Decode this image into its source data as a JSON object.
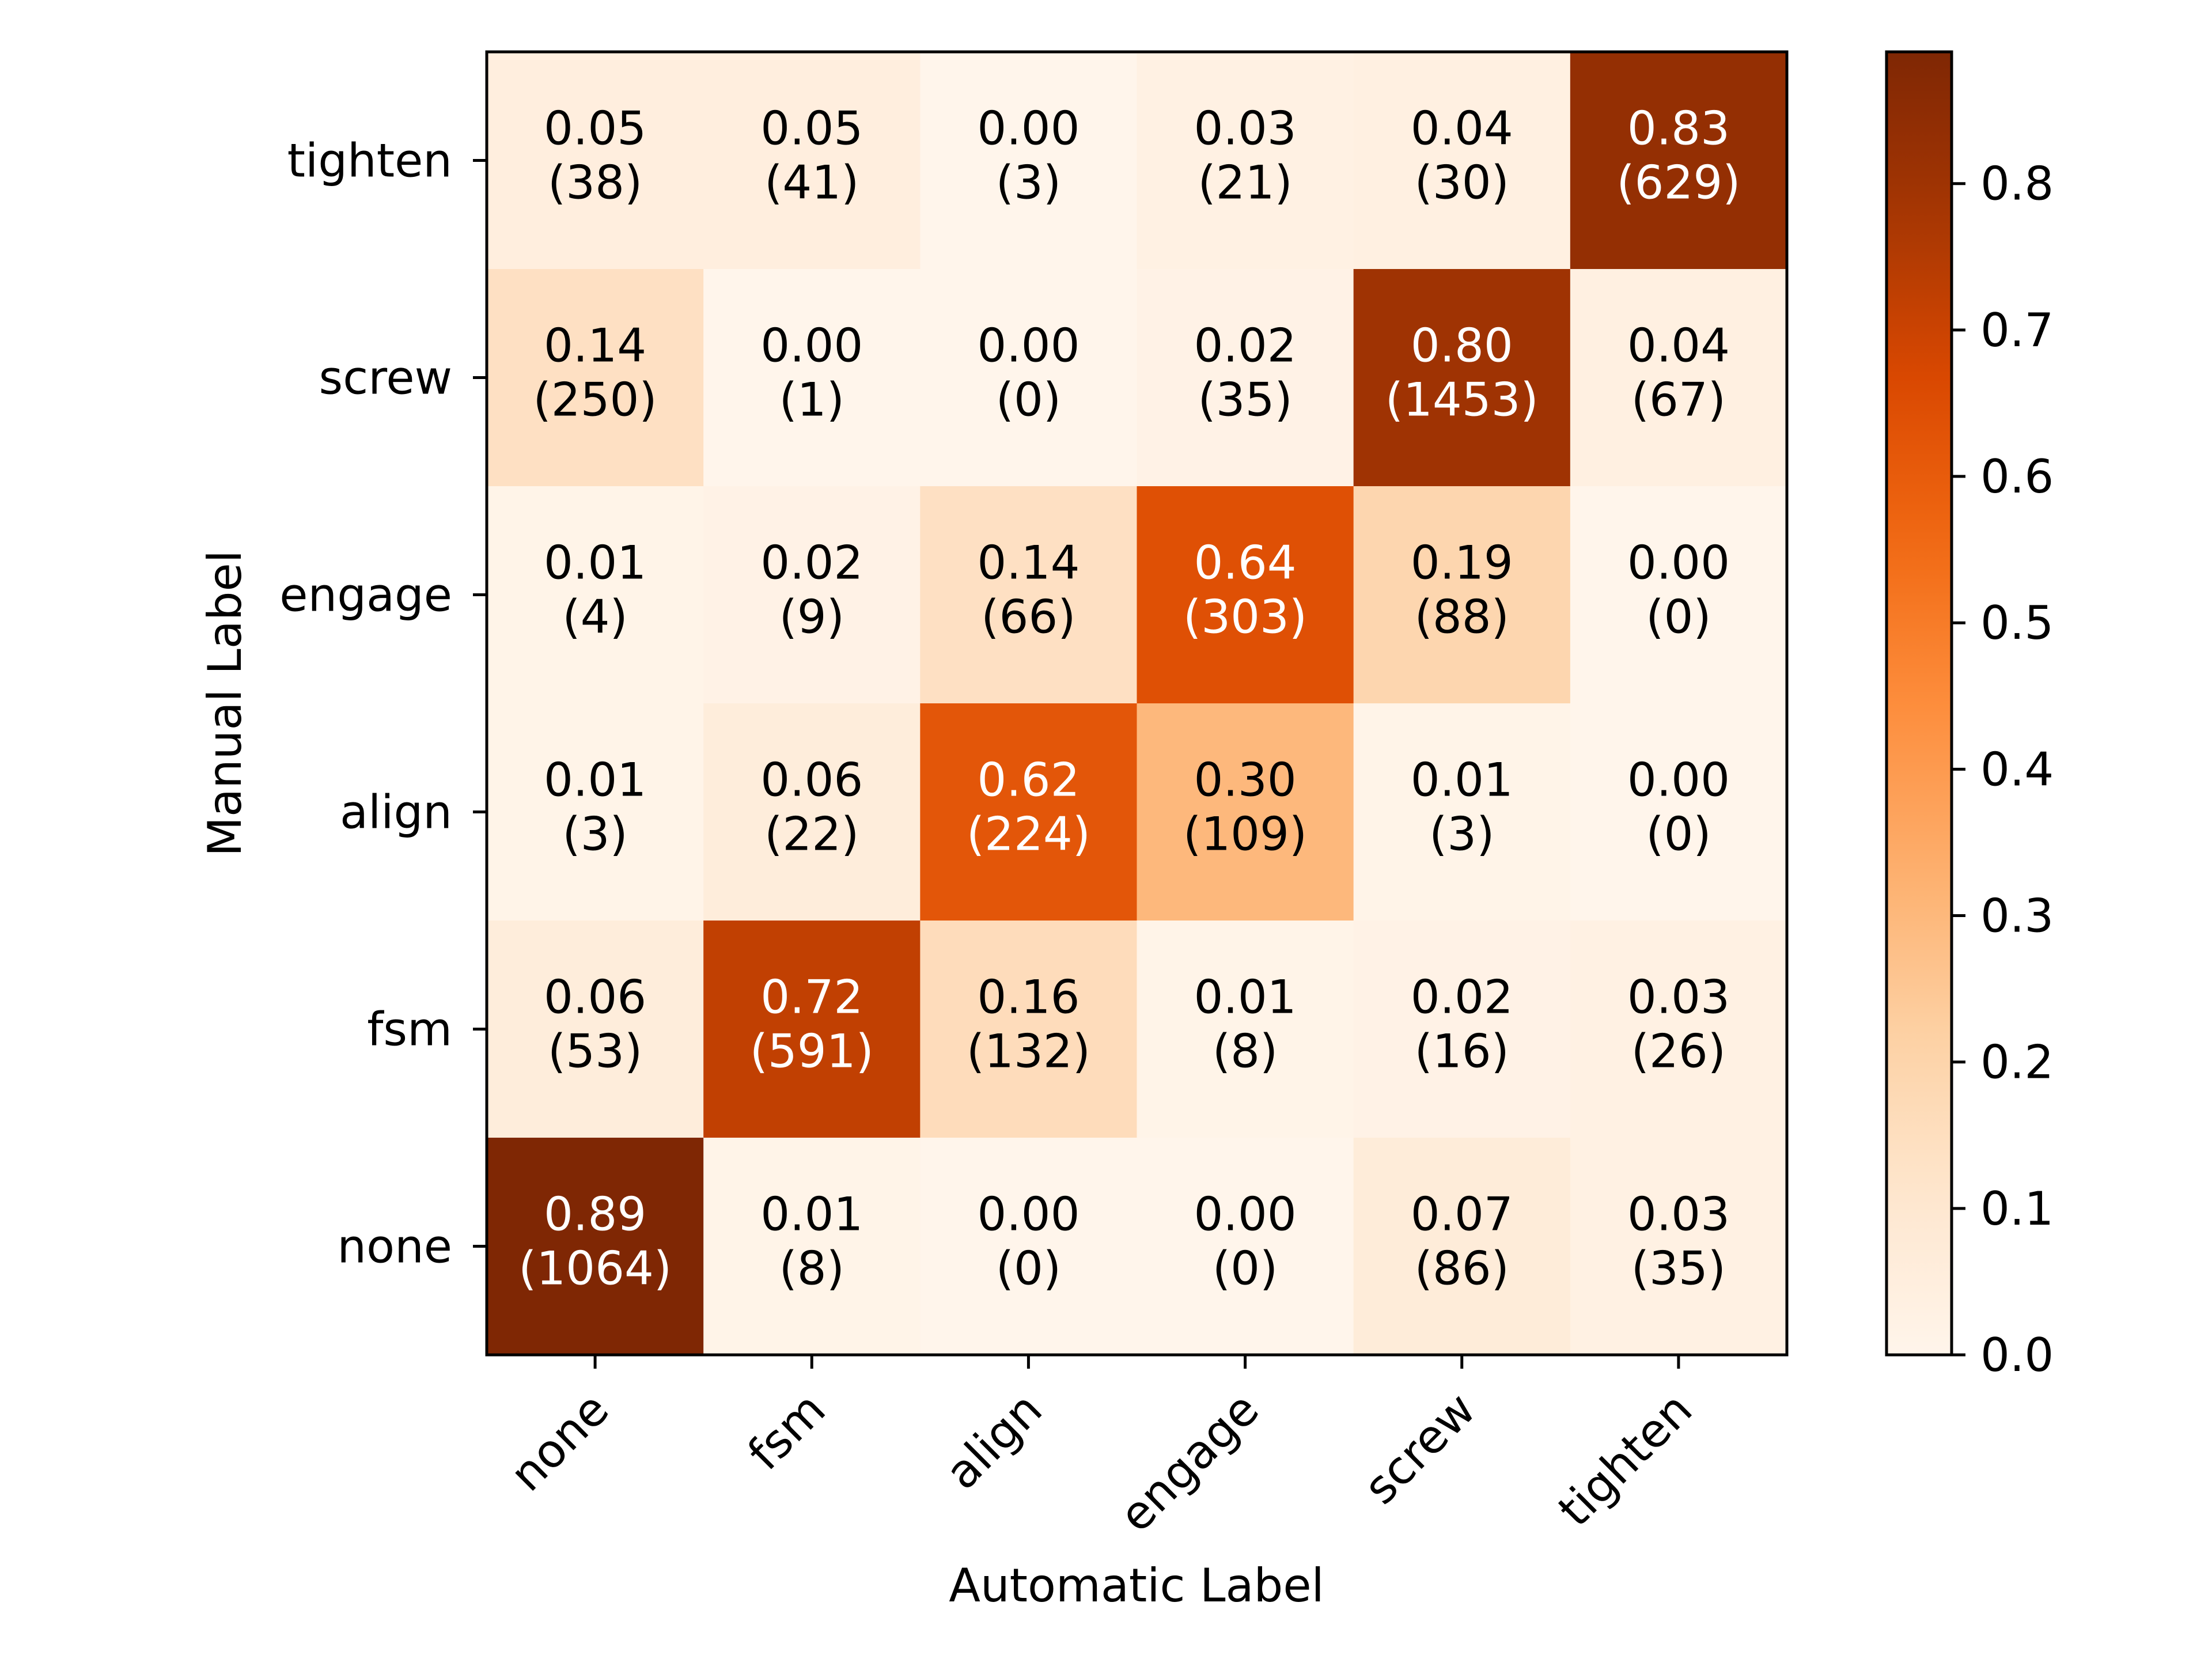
{
  "chart_data": {
    "type": "heatmap",
    "xlabel": "Automatic Label",
    "ylabel": "Manual Label",
    "x_categories": [
      "none",
      "fsm",
      "align",
      "engage",
      "screw",
      "tighten"
    ],
    "y_categories": [
      "tighten",
      "screw",
      "engage",
      "align",
      "fsm",
      "none"
    ],
    "values": [
      [
        0.05,
        0.05,
        0.0,
        0.03,
        0.04,
        0.83
      ],
      [
        0.14,
        0.0,
        0.0,
        0.02,
        0.8,
        0.04
      ],
      [
        0.01,
        0.02,
        0.14,
        0.64,
        0.19,
        0.0
      ],
      [
        0.01,
        0.06,
        0.62,
        0.3,
        0.01,
        0.0
      ],
      [
        0.06,
        0.72,
        0.16,
        0.01,
        0.02,
        0.03
      ],
      [
        0.89,
        0.01,
        0.0,
        0.0,
        0.07,
        0.03
      ]
    ],
    "counts": [
      [
        38,
        41,
        3,
        21,
        30,
        629
      ],
      [
        250,
        1,
        0,
        35,
        1453,
        67
      ],
      [
        4,
        9,
        66,
        303,
        88,
        0
      ],
      [
        3,
        22,
        224,
        109,
        3,
        0
      ],
      [
        53,
        591,
        132,
        8,
        16,
        26
      ],
      [
        1064,
        8,
        0,
        0,
        86,
        35
      ]
    ],
    "colorbar": {
      "colormap": "Oranges",
      "range": [
        0,
        0.89
      ],
      "ticks": [
        0.0,
        0.1,
        0.2,
        0.3,
        0.4,
        0.5,
        0.6,
        0.7,
        0.8
      ],
      "tick_labels": [
        "0.0",
        "0.1",
        "0.2",
        "0.3",
        "0.4",
        "0.5",
        "0.6",
        "0.7",
        "0.8"
      ]
    },
    "grid": false,
    "legend": "colorbar-right"
  }
}
